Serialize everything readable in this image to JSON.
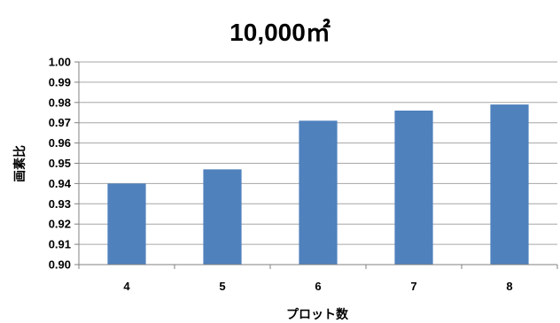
{
  "chart_data": {
    "type": "bar",
    "title": "10,000㎡",
    "xlabel": "プロット数",
    "ylabel": "画素比",
    "categories": [
      "4",
      "5",
      "6",
      "7",
      "8"
    ],
    "values": [
      0.94,
      0.947,
      0.971,
      0.976,
      0.979
    ],
    "ylim": [
      0.9,
      1.0
    ],
    "yticks": [
      "0.90",
      "0.91",
      "0.92",
      "0.93",
      "0.94",
      "0.95",
      "0.96",
      "0.97",
      "0.98",
      "0.99",
      "1.00"
    ],
    "grid": true,
    "legend": "none",
    "bar_color": "#4f81bd",
    "grid_color": "#a6a6a6"
  }
}
